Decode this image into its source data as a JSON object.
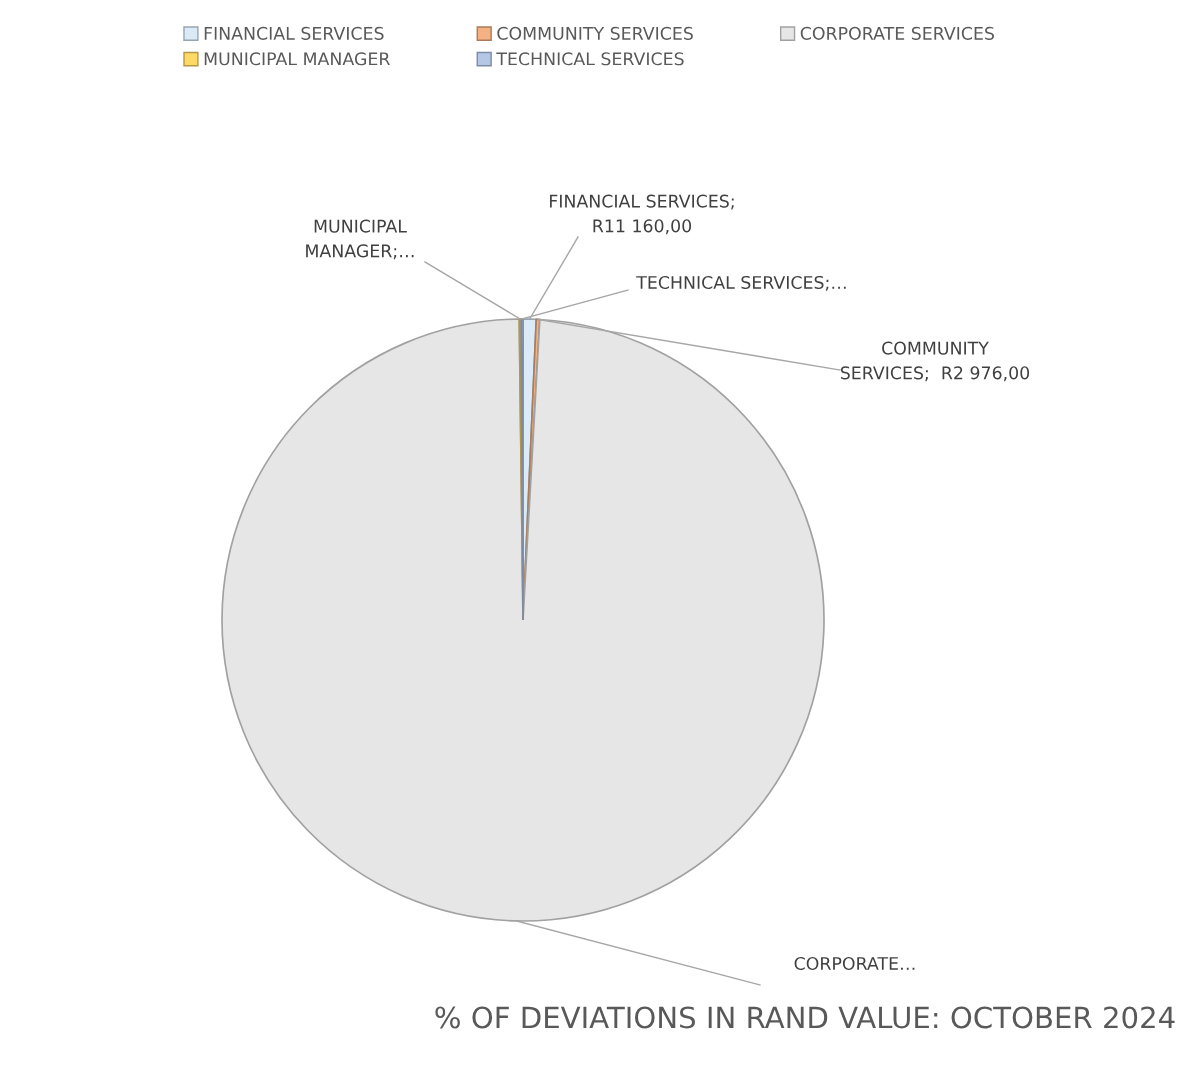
{
  "chart_data": {
    "type": "pie",
    "title": "% OF DEVIATIONS IN RAND VALUE: OCTOBER 2024",
    "categories": [
      "FINANCIAL SERVICES",
      "COMMUNITY SERVICES",
      "CORPORATE SERVICES",
      "MUNICIPAL MANAGER",
      "TECHNICAL SERVICES"
    ],
    "values": [
      0.7,
      0.19,
      98.91,
      0.1,
      0.1
    ],
    "colors": [
      "#dbeaf7",
      "#f4b183",
      "#e6e6e6",
      "#ffd966",
      "#b4c7e7"
    ],
    "value_labels": [
      "FINANCIAL SERVICES;\nR11 160,00",
      "COMMUNITY\nSERVICES;  R2 976,00",
      "CORPORATE…",
      "MUNICIPAL\nMANAGER;…",
      "TECHNICAL SERVICES;…"
    ],
    "legend": "top"
  }
}
